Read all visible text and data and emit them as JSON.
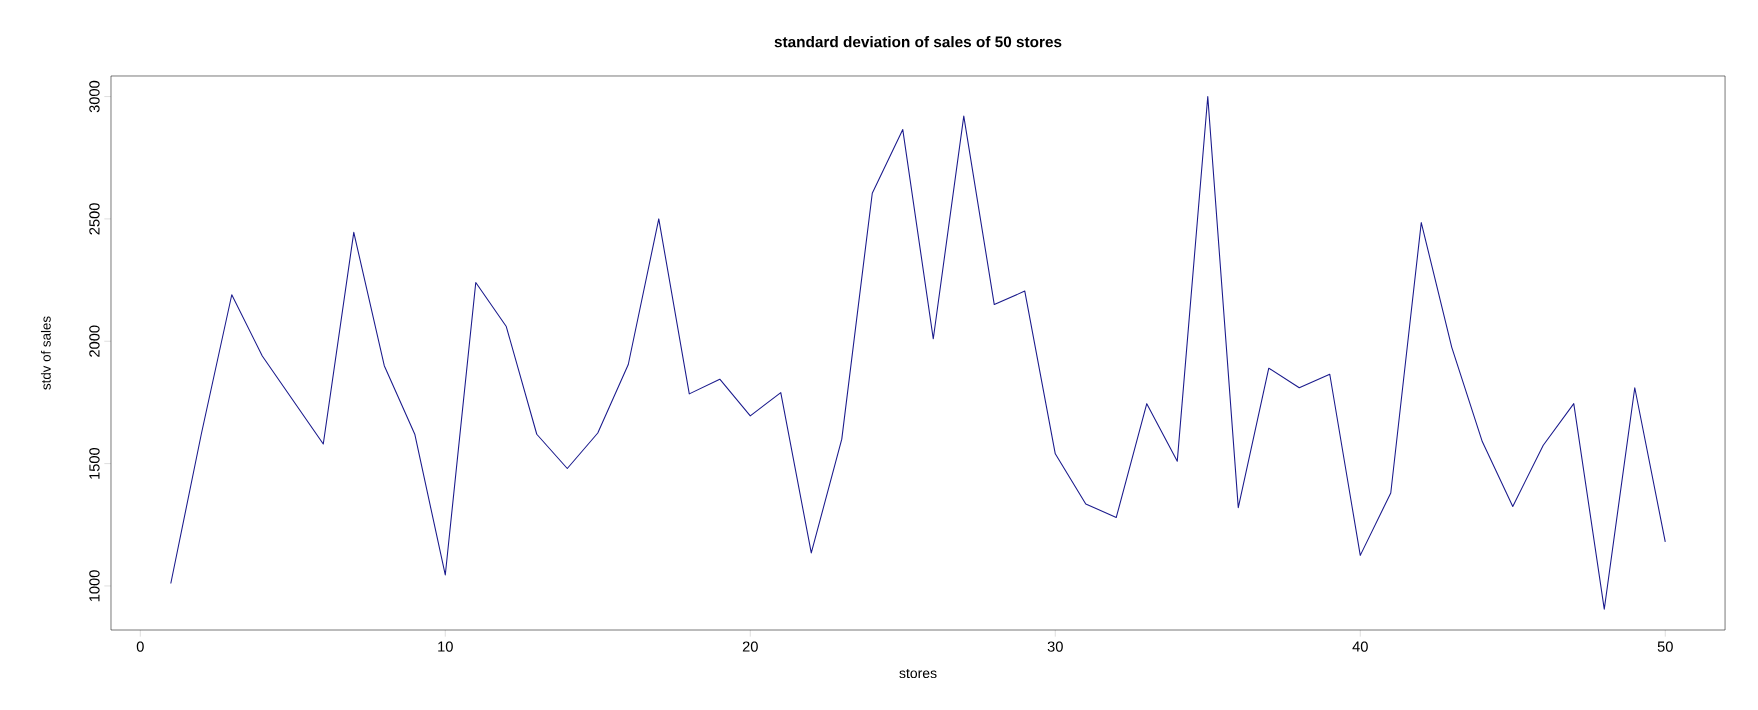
{
  "chart_data": {
    "type": "line",
    "title": "standard deviation of sales of 50 stores",
    "xlabel": "stores",
    "ylabel": "stdv of sales",
    "x": [
      1,
      2,
      3,
      4,
      5,
      6,
      7,
      8,
      9,
      10,
      11,
      12,
      13,
      14,
      15,
      16,
      17,
      18,
      19,
      20,
      21,
      22,
      23,
      24,
      25,
      26,
      27,
      28,
      29,
      30,
      31,
      32,
      33,
      34,
      35,
      36,
      37,
      38,
      39,
      40,
      41,
      42,
      43,
      44,
      45,
      46,
      47,
      48,
      49,
      50
    ],
    "values": [
      1010,
      1620,
      2190,
      1940,
      1760,
      1580,
      2445,
      1900,
      1620,
      1045,
      2240,
      2060,
      1620,
      1480,
      1625,
      1905,
      2500,
      1785,
      1845,
      1695,
      1790,
      1135,
      1600,
      2605,
      2865,
      2010,
      2920,
      2150,
      2205,
      1540,
      1335,
      1280,
      1745,
      1510,
      3000,
      1320,
      1890,
      1810,
      1865,
      1125,
      1380,
      2485,
      1975,
      1590,
      1325,
      1575,
      1745,
      905,
      1810,
      1180
    ],
    "color": "#1a1a8c",
    "xlim": [
      -0.96,
      51.96
    ],
    "ylim": [
      820,
      3084
    ],
    "xticks": [
      0,
      10,
      20,
      30,
      40,
      50
    ],
    "yticks": [
      1000,
      1500,
      2000,
      2500,
      3000
    ],
    "grid": false
  }
}
